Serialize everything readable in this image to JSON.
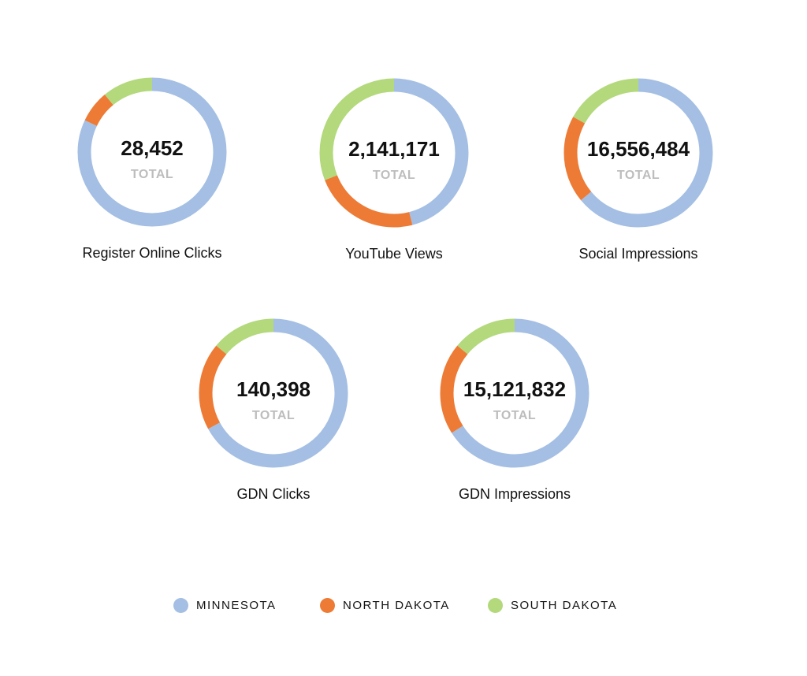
{
  "colors": {
    "minnesota": "#a4bfe3",
    "north_dakota": "#ed7b35",
    "south_dakota": "#b3d97c"
  },
  "chart_data": [
    {
      "type": "pie",
      "title": "Register Online Clicks",
      "center_value": "28,452",
      "center_label": "TOTAL",
      "categories": [
        "MINNESOTA",
        "NORTH DAKOTA",
        "SOUTH DAKOTA"
      ],
      "values": [
        0.82,
        0.07,
        0.11
      ]
    },
    {
      "type": "pie",
      "title": "YouTube Views",
      "center_value": "2,141,171",
      "center_label": "TOTAL",
      "categories": [
        "MINNESOTA",
        "NORTH DAKOTA",
        "SOUTH DAKOTA"
      ],
      "values": [
        0.46,
        0.23,
        0.31
      ]
    },
    {
      "type": "pie",
      "title": "Social Impressions",
      "center_value": "16,556,484",
      "center_label": "TOTAL",
      "categories": [
        "MINNESOTA",
        "NORTH DAKOTA",
        "SOUTH DAKOTA"
      ],
      "values": [
        0.64,
        0.19,
        0.17
      ]
    },
    {
      "type": "pie",
      "title": "GDN Clicks",
      "center_value": "140,398",
      "center_label": "TOTAL",
      "categories": [
        "MINNESOTA",
        "NORTH DAKOTA",
        "SOUTH DAKOTA"
      ],
      "values": [
        0.67,
        0.19,
        0.14
      ]
    },
    {
      "type": "pie",
      "title": "GDN Impressions",
      "center_value": "15,121,832",
      "center_label": "TOTAL",
      "categories": [
        "MINNESOTA",
        "NORTH DAKOTA",
        "SOUTH DAKOTA"
      ],
      "values": [
        0.66,
        0.2,
        0.14
      ]
    }
  ],
  "legend": [
    {
      "label": "MINNESOTA"
    },
    {
      "label": "NORTH DAKOTA"
    },
    {
      "label": "SOUTH DAKOTA"
    }
  ]
}
